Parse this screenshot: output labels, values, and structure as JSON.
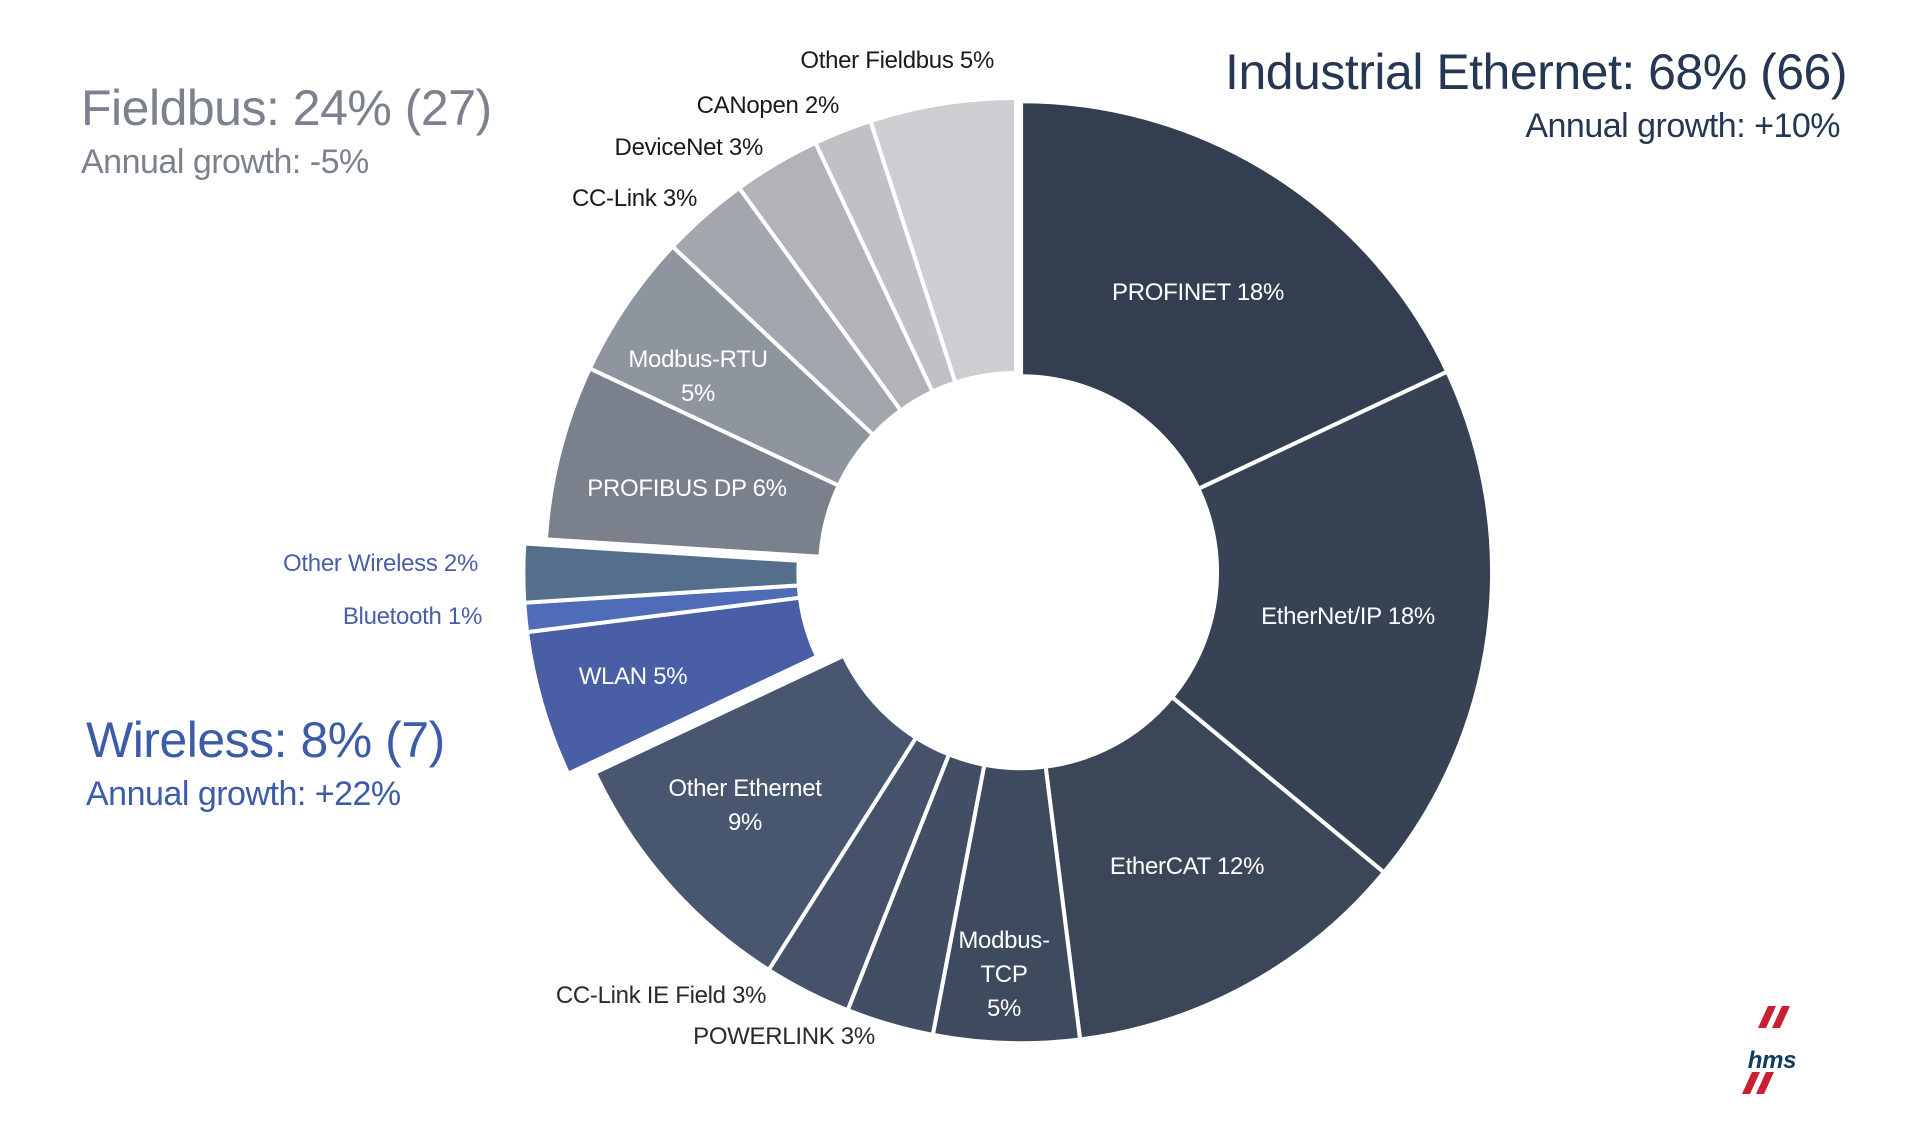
{
  "groups": {
    "fieldbus": {
      "title": "Fieldbus: 24% (27)",
      "growth": "Annual growth: -5%",
      "color": "#7b828d"
    },
    "industrial_ethernet": {
      "title": "Industrial Ethernet: 68% (66)",
      "growth": "Annual growth: +10%",
      "color": "#263754"
    },
    "wireless": {
      "title": "Wireless: 8% (7)",
      "growth": "Annual growth: +22%",
      "color": "#3d5ca8"
    }
  },
  "chart_data": {
    "type": "pie",
    "donut": true,
    "start": "top",
    "direction": "clockwise",
    "slices": [
      {
        "name": "PROFINET",
        "value": 18,
        "label": "PROFINET 18%",
        "group": "industrial_ethernet",
        "color": "#333f50"
      },
      {
        "name": "EtherNet/IP",
        "value": 18,
        "label": "EtherNet/IP 18%",
        "group": "industrial_ethernet",
        "color": "#374254"
      },
      {
        "name": "EtherCAT",
        "value": 12,
        "label": "EtherCAT 12%",
        "group": "industrial_ethernet",
        "color": "#3b4658"
      },
      {
        "name": "Modbus-TCP",
        "value": 5,
        "label": "Modbus-TCP 5%",
        "group": "industrial_ethernet",
        "color": "#3e4a5e"
      },
      {
        "name": "POWERLINK",
        "value": 3,
        "label": "POWERLINK 3%",
        "group": "industrial_ethernet",
        "color": "#414e64"
      },
      {
        "name": "CC-Link IE Field",
        "value": 3,
        "label": "CC-Link IE Field 3%",
        "group": "industrial_ethernet",
        "color": "#45526a"
      },
      {
        "name": "Other Ethernet",
        "value": 9,
        "label": "Other Ethernet 9%",
        "group": "industrial_ethernet",
        "color": "#49566f"
      },
      {
        "name": "WLAN",
        "value": 5,
        "label": "WLAN 5%",
        "group": "wireless",
        "color": "#4a5ea6"
      },
      {
        "name": "Bluetooth",
        "value": 1,
        "label": "Bluetooth 1%",
        "group": "wireless",
        "color": "#4e6cb8"
      },
      {
        "name": "Other Wireless",
        "value": 2,
        "label": "Other Wireless 2%",
        "group": "wireless",
        "color": "#546e8c"
      },
      {
        "name": "PROFIBUS DP",
        "value": 6,
        "label": "PROFIBUS DP 6%",
        "group": "fieldbus",
        "color": "#7a818c"
      },
      {
        "name": "Modbus-RTU",
        "value": 5,
        "label": "Modbus-RTU 5%",
        "group": "fieldbus",
        "color": "#8f959e"
      },
      {
        "name": "CC-Link",
        "value": 3,
        "label": "CC-Link 3%",
        "group": "fieldbus",
        "color": "#a3a6ad"
      },
      {
        "name": "DeviceNet",
        "value": 3,
        "label": "DeviceNet 3%",
        "group": "fieldbus",
        "color": "#b1b3b8"
      },
      {
        "name": "CANopen",
        "value": 2,
        "label": "CANopen 2%",
        "group": "fieldbus",
        "color": "#bfc1c5"
      },
      {
        "name": "Other Fieldbus",
        "value": 5,
        "label": "Other Fieldbus 5%",
        "group": "fieldbus",
        "color": "#cdced2"
      }
    ]
  },
  "logo": {
    "text": "HMS",
    "text_color": "#0f3d63",
    "accent_color": "#c8202f"
  }
}
